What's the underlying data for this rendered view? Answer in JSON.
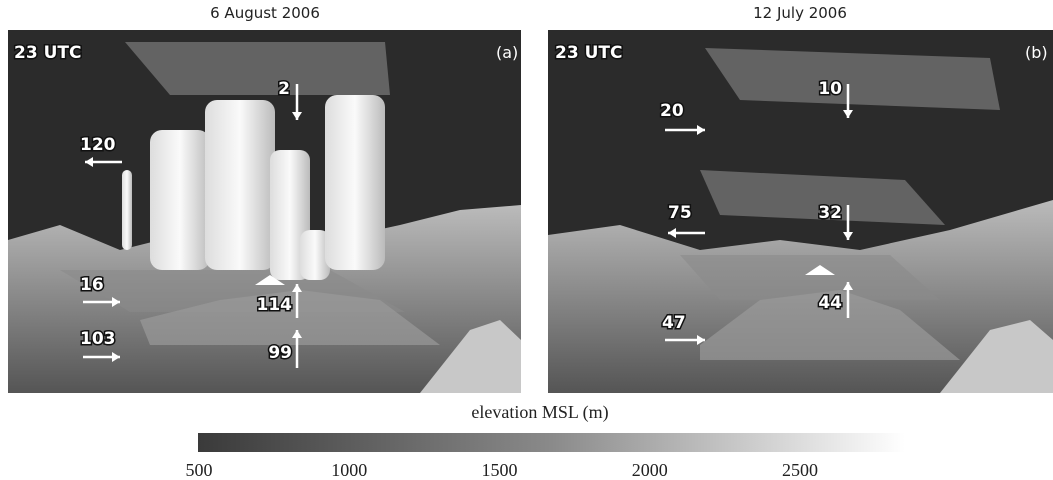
{
  "panels": [
    {
      "title": "6 August 2006",
      "time": "23 UTC",
      "tag": "(a)",
      "annotations": [
        {
          "label": "2"
        },
        {
          "label": "120"
        },
        {
          "label": "16"
        },
        {
          "label": "103"
        },
        {
          "label": "114"
        },
        {
          "label": "99"
        }
      ]
    },
    {
      "title": "12 July 2006",
      "time": "23 UTC",
      "tag": "(b)",
      "annotations": [
        {
          "label": "10"
        },
        {
          "label": "20"
        },
        {
          "label": "75"
        },
        {
          "label": "32"
        },
        {
          "label": "44"
        },
        {
          "label": "47"
        }
      ]
    }
  ],
  "colorbar": {
    "label": "elevation MSL (m)",
    "ticks": [
      500,
      1000,
      1500,
      2000,
      2500
    ]
  }
}
